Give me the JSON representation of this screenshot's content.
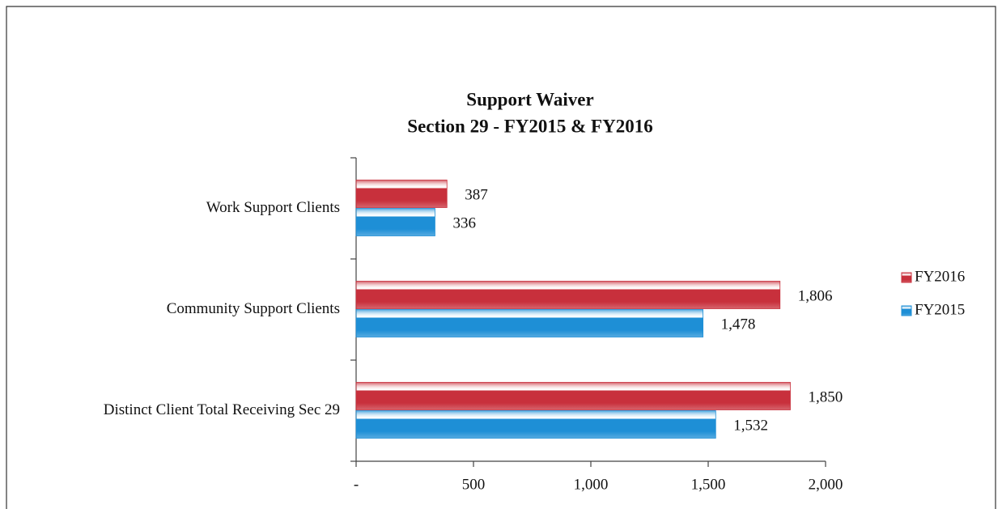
{
  "chart_data": {
    "type": "hbar",
    "title": "Support Waiver",
    "subtitle": "Section 29 - FY2015 & FY2016",
    "categories": [
      "Work Support Clients",
      "Community Support Clients",
      "Distinct Client Total Receiving Sec 29"
    ],
    "series": [
      {
        "name": "FY2016",
        "color": "#c8303c",
        "values": [
          387,
          1806,
          1850
        ],
        "value_labels": [
          "387",
          "1,806",
          "1,850"
        ]
      },
      {
        "name": "FY2015",
        "color": "#1e8fd6",
        "values": [
          336,
          1478,
          1532
        ],
        "value_labels": [
          "336",
          "1,478",
          "1,532"
        ]
      }
    ],
    "xlim": [
      0,
      2000
    ],
    "xticks": [
      {
        "value": 0,
        "label": "-"
      },
      500,
      {
        "value": 1000,
        "label": "1,000"
      },
      {
        "value": 1500,
        "label": "1,500"
      },
      {
        "value": 2000,
        "label": "2,000"
      }
    ],
    "legend": "right"
  }
}
